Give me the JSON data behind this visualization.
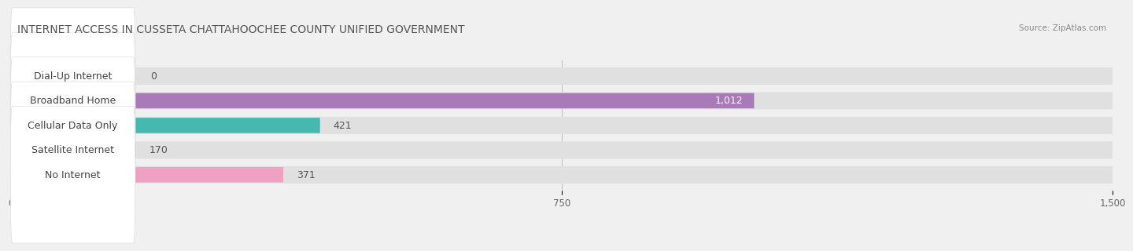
{
  "title": "Internet Access in Cusseta Chattahoochee County unified government",
  "title_display": "INTERNET ACCESS IN CUSSETA CHATTAHOOCHEE COUNTY UNIFIED GOVERNMENT",
  "source": "Source: ZipAtlas.com",
  "categories": [
    "Dial-Up Internet",
    "Broadband Home",
    "Cellular Data Only",
    "Satellite Internet",
    "No Internet"
  ],
  "values": [
    0,
    1012,
    421,
    170,
    371
  ],
  "bar_colors": [
    "#a8c8f0",
    "#a87bb8",
    "#45b8b0",
    "#a0a8e0",
    "#f0a0c0"
  ],
  "label_bg_color": "#ffffff",
  "xlim": [
    0,
    1500
  ],
  "xticks": [
    0,
    750,
    1500
  ],
  "background_color": "#f0f0f0",
  "row_bg_color": "#e0e0e0",
  "title_fontsize": 10,
  "label_fontsize": 9,
  "value_fontsize": 9,
  "bar_height": 0.62,
  "figsize": [
    14.06,
    2.69
  ]
}
